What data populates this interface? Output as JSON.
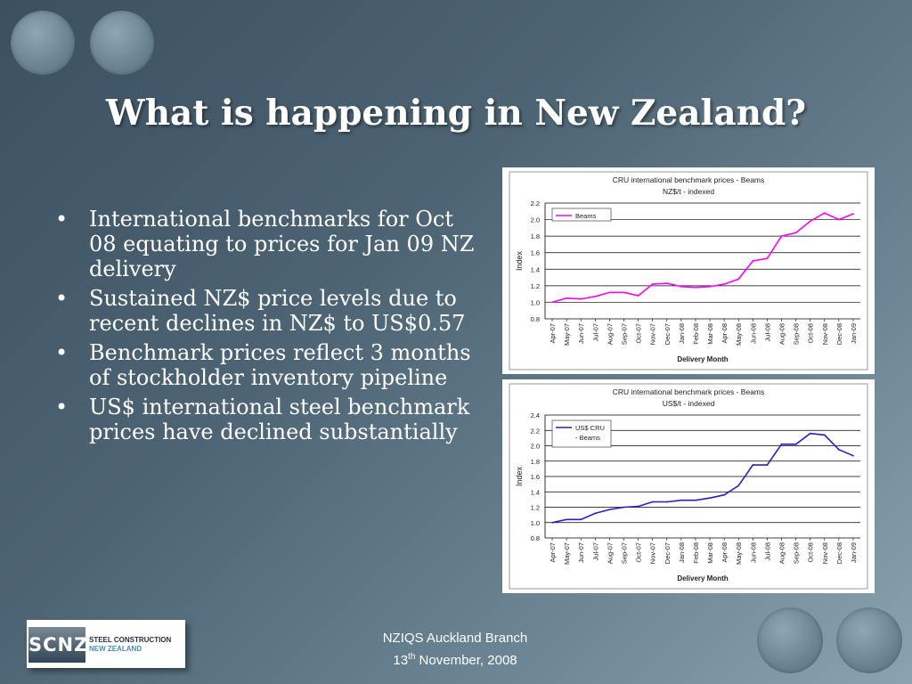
{
  "title": "What is happening in New Zealand?",
  "bullets": [
    {
      "marker": "•",
      "text": "International benchmarks for Oct 08 equating to prices for Jan 09 NZ delivery"
    },
    {
      "marker": "•",
      "text": "Sustained NZ$ price levels due to recent declines in NZ$ to US$0.57"
    },
    {
      "marker": "•",
      "text": "Benchmark prices reflect 3 months of stockholder inventory pipeline"
    },
    {
      "marker": "•",
      "text": "US$ international steel benchmark prices have declined substantially"
    }
  ],
  "footer": {
    "line1": "NZIQS Auckland Branch",
    "date_day": "13",
    "date_suffix": "th",
    "date_rest": " November, 2008"
  },
  "logo": {
    "mark": "SCNZ",
    "line1": "STEEL CONSTRUCTION",
    "line2": "NEW ZEALAND"
  },
  "colors": {
    "nz_series": "#ff00ff",
    "us_series": "#2222cc"
  },
  "chart_data": [
    {
      "type": "line",
      "title": "CRU international benchmark prices - Beams",
      "subtitle": "NZ$/t - indexed",
      "xlabel": "Delivery Month",
      "ylabel": "Index",
      "ylim": [
        0.8,
        2.2
      ],
      "yticks": [
        "0.8",
        "1.0",
        "1.2",
        "1.4",
        "1.6",
        "1.8",
        "2.0",
        "2.2"
      ],
      "grid": true,
      "legend_position": "top-left",
      "categories": [
        "Apr-07",
        "May-07",
        "Jun-07",
        "Jul-07",
        "Aug-07",
        "Sep-07",
        "Oct-07",
        "Nov-07",
        "Dec-07",
        "Jan-08",
        "Feb-08",
        "Mar-08",
        "Apr-08",
        "May-08",
        "Jun-08",
        "Jul-08",
        "Aug-08",
        "Sep-08",
        "Oct-08",
        "Nov-08",
        "Dec-08",
        "Jan-09"
      ],
      "series": [
        {
          "name": "Beams",
          "color": "#ff00ff",
          "values": [
            1.0,
            1.05,
            1.04,
            1.07,
            1.12,
            1.12,
            1.08,
            1.22,
            1.23,
            1.19,
            1.18,
            1.19,
            1.22,
            1.28,
            1.5,
            1.53,
            1.8,
            1.84,
            1.98,
            2.08,
            2.0,
            2.07
          ]
        }
      ]
    },
    {
      "type": "line",
      "title": "CRU international benchmark prices - Beams",
      "subtitle": "US$/t - indexed",
      "xlabel": "Delivery Month",
      "ylabel": "Index",
      "ylim": [
        0.8,
        2.4
      ],
      "yticks": [
        "0.8",
        "1.0",
        "1.2",
        "1.4",
        "1.6",
        "1.8",
        "2.0",
        "2.2",
        "2.4"
      ],
      "grid": true,
      "legend_position": "top-left",
      "categories": [
        "Apr-07",
        "May-07",
        "Jun-07",
        "Jul-07",
        "Aug-07",
        "Sep-07",
        "Oct-07",
        "Nov-07",
        "Dec-07",
        "Jan-08",
        "Feb-08",
        "Mar-08",
        "Apr-08",
        "May-08",
        "Jun-08",
        "Jul-08",
        "Aug-08",
        "Sep-08",
        "Oct-08",
        "Nov-08",
        "Dec-08",
        "Jan-09"
      ],
      "series": [
        {
          "name": "US$ CRU - Beams",
          "color": "#2222cc",
          "values": [
            1.0,
            1.04,
            1.04,
            1.12,
            1.17,
            1.2,
            1.21,
            1.27,
            1.27,
            1.29,
            1.29,
            1.32,
            1.36,
            1.48,
            1.75,
            1.75,
            2.02,
            2.02,
            2.16,
            2.14,
            1.95,
            1.87
          ]
        }
      ]
    }
  ]
}
